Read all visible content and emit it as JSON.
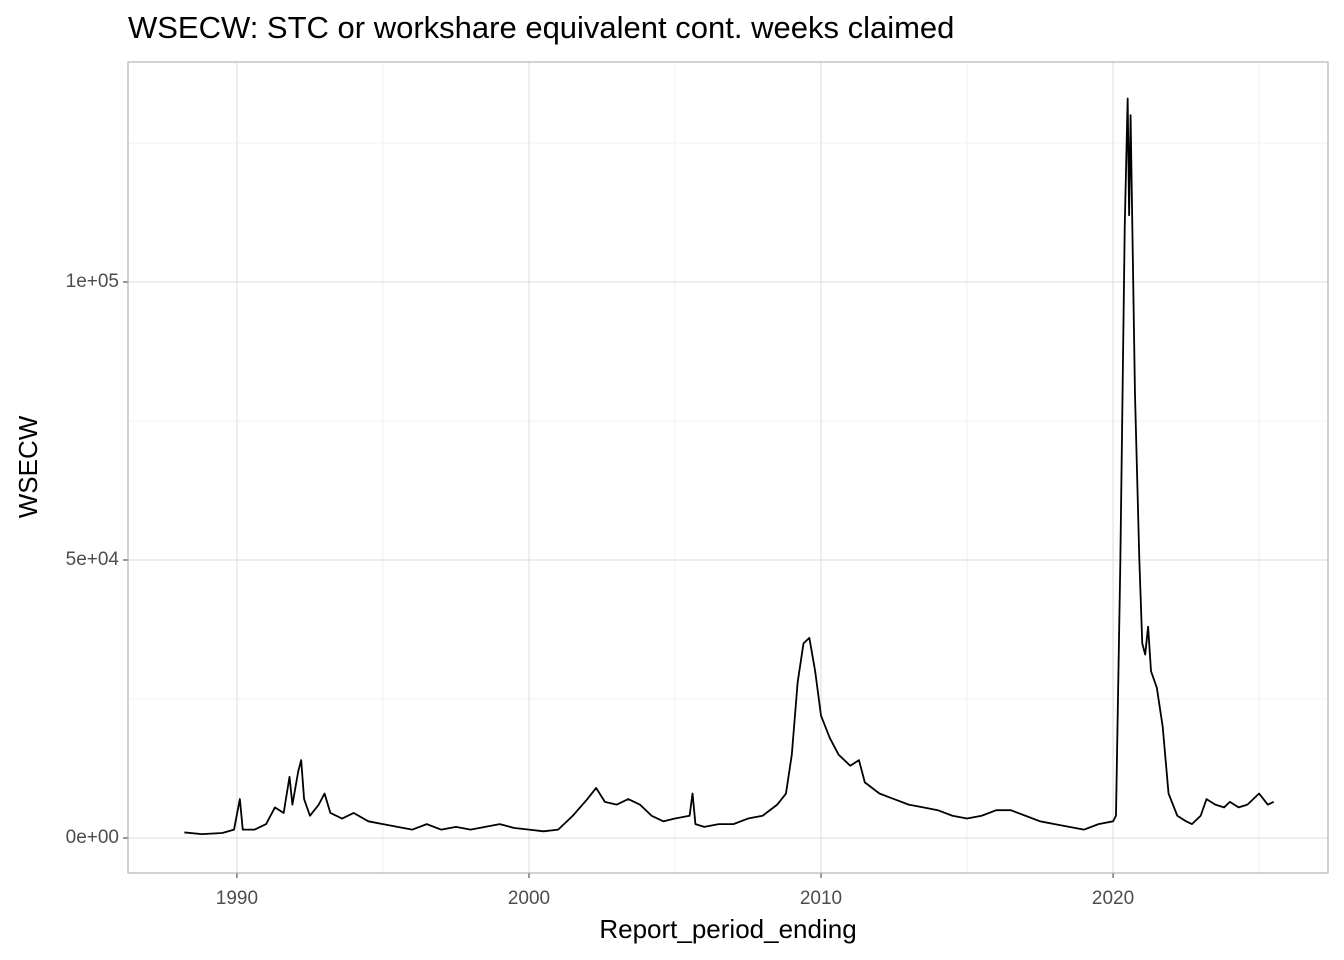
{
  "chart_data": {
    "type": "line",
    "title": "WSECW: STC or workshare equivalent cont. weeks claimed",
    "x_label": "Report_period_ending",
    "y_label": "WSECW",
    "xlim": [
      1986.27,
      2027.36
    ],
    "ylim": [
      -6295,
      139568
    ],
    "xticks": [
      1990,
      2000,
      2010,
      2020
    ],
    "yticks": [
      {
        "value": 0,
        "label": "0e+00"
      },
      {
        "value": 50000,
        "label": "5e+04"
      },
      {
        "value": 100000,
        "label": "1e+05"
      }
    ],
    "x_minor_ticks": [
      1995,
      2005,
      2015,
      2025
    ],
    "y_minor_ticks": [
      25000,
      75000,
      125000
    ],
    "grid": true,
    "series": [
      {
        "color": "#000000",
        "x": [
          1988.2,
          1988.8,
          1989.5,
          1989.9,
          1990.1,
          1990.2,
          1990.6,
          1991.0,
          1991.3,
          1991.6,
          1991.8,
          1991.9,
          1992.1,
          1992.2,
          1992.3,
          1992.5,
          1992.8,
          1993.0,
          1993.2,
          1993.6,
          1994.0,
          1994.5,
          1995.0,
          1995.5,
          1996.0,
          1996.5,
          1997.0,
          1997.5,
          1998.0,
          1998.5,
          1999.0,
          1999.5,
          2000.0,
          2000.5,
          2001.0,
          2001.5,
          2002.0,
          2002.3,
          2002.6,
          2003.0,
          2003.4,
          2003.8,
          2004.2,
          2004.6,
          2005.0,
          2005.5,
          2005.6,
          2005.7,
          2006.0,
          2006.5,
          2007.0,
          2007.5,
          2008.0,
          2008.5,
          2008.8,
          2009.0,
          2009.2,
          2009.4,
          2009.6,
          2009.8,
          2010.0,
          2010.3,
          2010.6,
          2011.0,
          2011.3,
          2011.5,
          2012.0,
          2012.5,
          2013.0,
          2013.5,
          2014.0,
          2014.5,
          2015.0,
          2015.5,
          2016.0,
          2016.5,
          2017.0,
          2017.5,
          2018.0,
          2018.5,
          2019.0,
          2019.5,
          2020.0,
          2020.1,
          2020.25,
          2020.4,
          2020.5,
          2020.55,
          2020.6,
          2020.75,
          2020.9,
          2021.0,
          2021.1,
          2021.2,
          2021.3,
          2021.5,
          2021.7,
          2021.9,
          2022.2,
          2022.5,
          2022.7,
          2023.0,
          2023.2,
          2023.5,
          2023.8,
          2024.0,
          2024.3,
          2024.6,
          2025.0,
          2025.3,
          2025.5
        ],
        "values": [
          1000,
          700,
          900,
          1500,
          7000,
          1500,
          1500,
          2500,
          5500,
          4500,
          11000,
          6000,
          12000,
          14000,
          7000,
          4000,
          6000,
          8000,
          4500,
          3500,
          4500,
          3000,
          2500,
          2000,
          1500,
          2500,
          1500,
          2000,
          1500,
          2000,
          2500,
          1800,
          1500,
          1200,
          1500,
          4000,
          7000,
          9000,
          6500,
          6000,
          7000,
          6000,
          4000,
          3000,
          3500,
          4000,
          8000,
          2500,
          2000,
          2500,
          2500,
          3500,
          4000,
          6000,
          8000,
          15000,
          28000,
          35000,
          36000,
          30000,
          22000,
          18000,
          15000,
          13000,
          14000,
          10000,
          8000,
          7000,
          6000,
          5500,
          5000,
          4000,
          3500,
          4000,
          5000,
          5000,
          4000,
          3000,
          2500,
          2000,
          1500,
          2500,
          3000,
          4000,
          50000,
          110000,
          133000,
          112000,
          130000,
          80000,
          50000,
          35000,
          33000,
          38000,
          30000,
          27000,
          20000,
          8000,
          4000,
          3000,
          2500,
          4000,
          7000,
          6000,
          5500,
          6500,
          5500,
          6000,
          8000,
          6000,
          6500
        ]
      }
    ]
  }
}
